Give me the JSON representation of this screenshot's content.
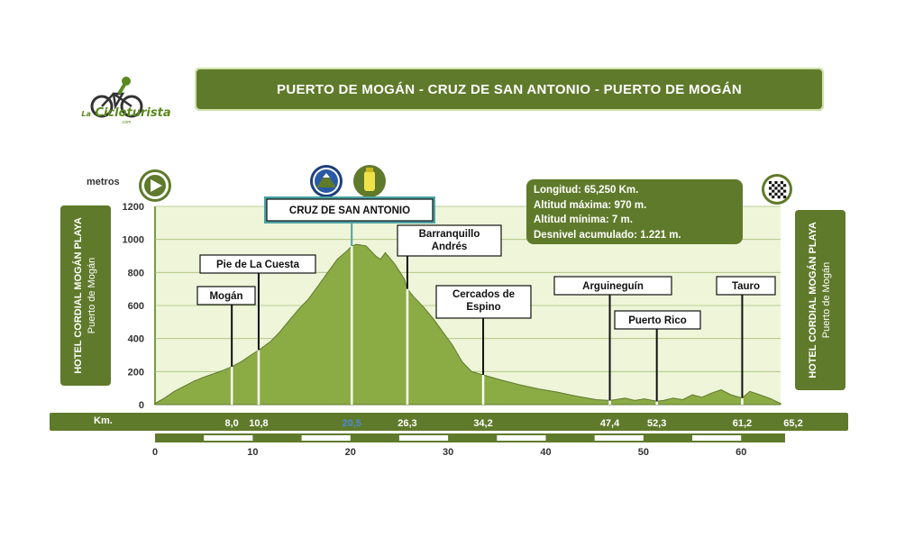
{
  "title": "PUERTO DE MOGÁN - CRUZ DE SAN ANTONIO - PUERTO DE MOGÁN",
  "logo": {
    "small": "La",
    "name": "Cicloturista",
    "sub": ".com"
  },
  "left_panel": {
    "line1": "HOTEL CORDIAL MOGÁN PLAYA",
    "line2": "Puerto de Mogán"
  },
  "right_panel": {
    "line1": "HOTEL CORDIAL MOGÁN PLAYA",
    "line2": "Puerto de Mogán"
  },
  "stats": {
    "longitud": "Longitud: 65,250 Km.",
    "alt_max": "Altitud máxima: 970 m.",
    "alt_min": "Altitud mínima: 7 m.",
    "desnivel": "Desnivel  acumulado: 1.221 m."
  },
  "y_unit": "metros",
  "km_label": "Km.",
  "colors": {
    "dark_green": "#5f7a2b",
    "fill_green": "#8bab45",
    "plot_bg": "#eef5d9",
    "accent_teal": "#4aa3a3",
    "summit_blue": "#4a8ad4"
  },
  "icons": [
    "start-play-icon",
    "mountain-summit-icon",
    "water-bottle-icon",
    "finish-flag-icon"
  ],
  "chart_data": {
    "type": "area",
    "xlim": [
      0,
      65.2
    ],
    "ylim": [
      0,
      1200
    ],
    "yticks": [
      0,
      200,
      400,
      600,
      800,
      1000,
      1200
    ],
    "xticks": [
      0,
      10,
      20,
      30,
      40,
      50,
      60
    ],
    "profile": [
      [
        0,
        7
      ],
      [
        1,
        40
      ],
      [
        2,
        80
      ],
      [
        3,
        110
      ],
      [
        4,
        140
      ],
      [
        5,
        165
      ],
      [
        6,
        185
      ],
      [
        7,
        205
      ],
      [
        8,
        230
      ],
      [
        9,
        260
      ],
      [
        10,
        300
      ],
      [
        10.8,
        330
      ],
      [
        12,
        380
      ],
      [
        13,
        440
      ],
      [
        14,
        510
      ],
      [
        15,
        580
      ],
      [
        16,
        640
      ],
      [
        17,
        720
      ],
      [
        18,
        800
      ],
      [
        19,
        880
      ],
      [
        20,
        930
      ],
      [
        20.5,
        960
      ],
      [
        21,
        970
      ],
      [
        22,
        960
      ],
      [
        23,
        900
      ],
      [
        23.5,
        880
      ],
      [
        24,
        920
      ],
      [
        25,
        850
      ],
      [
        26,
        760
      ],
      [
        26.3,
        700
      ],
      [
        27,
        650
      ],
      [
        28,
        590
      ],
      [
        29,
        520
      ],
      [
        30,
        440
      ],
      [
        31,
        360
      ],
      [
        32,
        260
      ],
      [
        33,
        200
      ],
      [
        34.2,
        180
      ],
      [
        36,
        150
      ],
      [
        38,
        120
      ],
      [
        40,
        95
      ],
      [
        42,
        75
      ],
      [
        44,
        50
      ],
      [
        46,
        30
      ],
      [
        47.4,
        25
      ],
      [
        48,
        30
      ],
      [
        49,
        40
      ],
      [
        50,
        25
      ],
      [
        51,
        35
      ],
      [
        52.3,
        20
      ],
      [
        53,
        25
      ],
      [
        54,
        40
      ],
      [
        55,
        30
      ],
      [
        56,
        60
      ],
      [
        57,
        45
      ],
      [
        58,
        70
      ],
      [
        59,
        90
      ],
      [
        60,
        60
      ],
      [
        61.2,
        40
      ],
      [
        62,
        80
      ],
      [
        63,
        60
      ],
      [
        64,
        40
      ],
      [
        65.2,
        7
      ]
    ],
    "waypoints": [
      {
        "km": 8.0,
        "label": "Mogán",
        "km_text": "8,0"
      },
      {
        "km": 10.8,
        "label": "Pie de La Cuesta",
        "km_text": "10,8"
      },
      {
        "km": 20.5,
        "label": "CRUZ DE SAN ANTONIO",
        "km_text": "20,5"
      },
      {
        "km": 26.3,
        "label": "Barranquillo Andrés",
        "km_text": "26,3"
      },
      {
        "km": 34.2,
        "label": "Cercados de Espino",
        "km_text": "34,2"
      },
      {
        "km": 47.4,
        "label": "Arguineguín",
        "km_text": "47,4"
      },
      {
        "km": 52.3,
        "label": "Puerto Rico",
        "km_text": "52,3"
      },
      {
        "km": 61.2,
        "label": "Tauro",
        "km_text": "61,2"
      },
      {
        "km": 65.2,
        "label": "",
        "km_text": "65,2"
      }
    ]
  }
}
